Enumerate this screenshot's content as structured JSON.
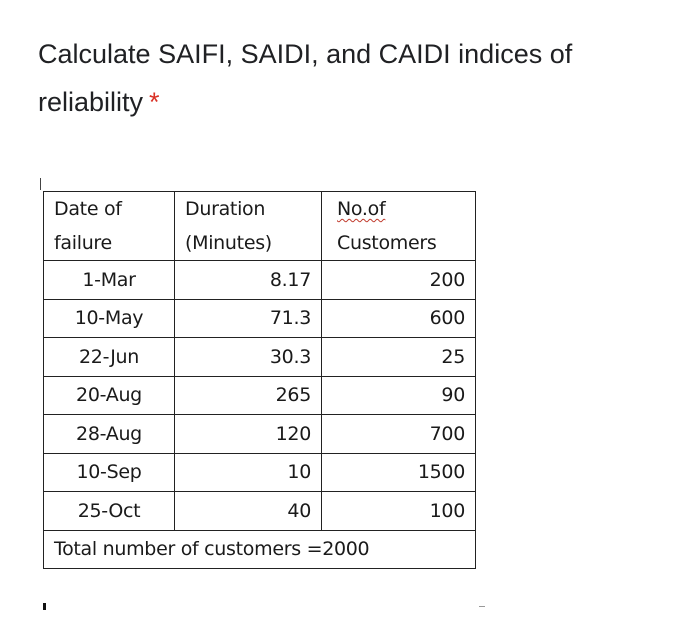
{
  "question": {
    "text": "Calculate SAIFI, SAIDI, and CAIDI indices of reliability",
    "required_marker": "*"
  },
  "table": {
    "headers": {
      "date_line1": "Date of",
      "date_line2": "failure",
      "duration_line1": "Duration",
      "duration_line2": "(Minutes)",
      "customers_line1": "No.of",
      "customers_line2": "Customers"
    },
    "rows": [
      {
        "date": "1-Mar",
        "duration": "8.17",
        "customers": "200"
      },
      {
        "date": "10-May",
        "duration": "71.3",
        "customers": "600"
      },
      {
        "date": "22-Jun",
        "duration": "30.3",
        "customers": "25"
      },
      {
        "date": "20-Aug",
        "duration": "265",
        "customers": "90"
      },
      {
        "date": "28-Aug",
        "duration": "120",
        "customers": "700"
      },
      {
        "date": "10-Sep",
        "duration": "10",
        "customers": "1500"
      },
      {
        "date": "25-Oct",
        "duration": "40",
        "customers": "100"
      }
    ],
    "total": "Total number of customers =2000"
  }
}
